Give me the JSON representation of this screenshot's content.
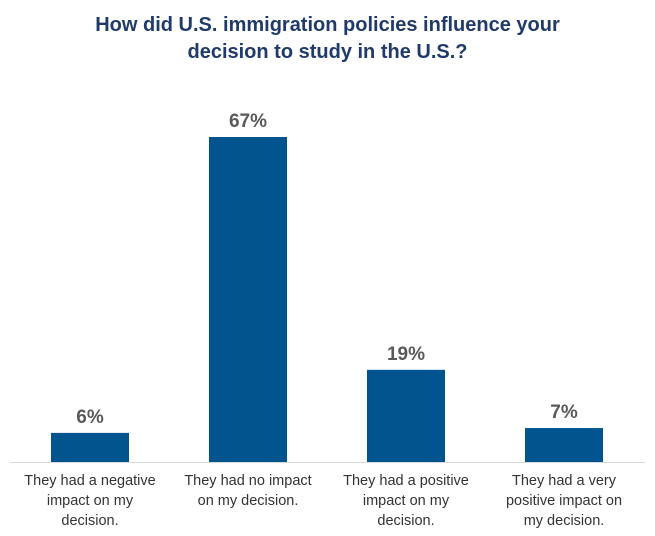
{
  "chart_data": {
    "type": "bar",
    "title_lines": [
      "How did U.S. immigration policies influence your",
      "decision to study in the U.S.?"
    ],
    "categories": [
      [
        "They had a negative",
        "impact on my",
        "decision."
      ],
      [
        "They had no impact",
        "on my decision."
      ],
      [
        "They had a positive",
        "impact on my",
        "decision."
      ],
      [
        "They had a very",
        "positive impact on",
        "my decision."
      ]
    ],
    "values": [
      6,
      67,
      19,
      7
    ],
    "value_labels": [
      "6%",
      "67%",
      "19%",
      "7%"
    ],
    "ylim": [
      0,
      67
    ],
    "bar_color": "#02548f",
    "xlabel": "",
    "ylabel": ""
  }
}
